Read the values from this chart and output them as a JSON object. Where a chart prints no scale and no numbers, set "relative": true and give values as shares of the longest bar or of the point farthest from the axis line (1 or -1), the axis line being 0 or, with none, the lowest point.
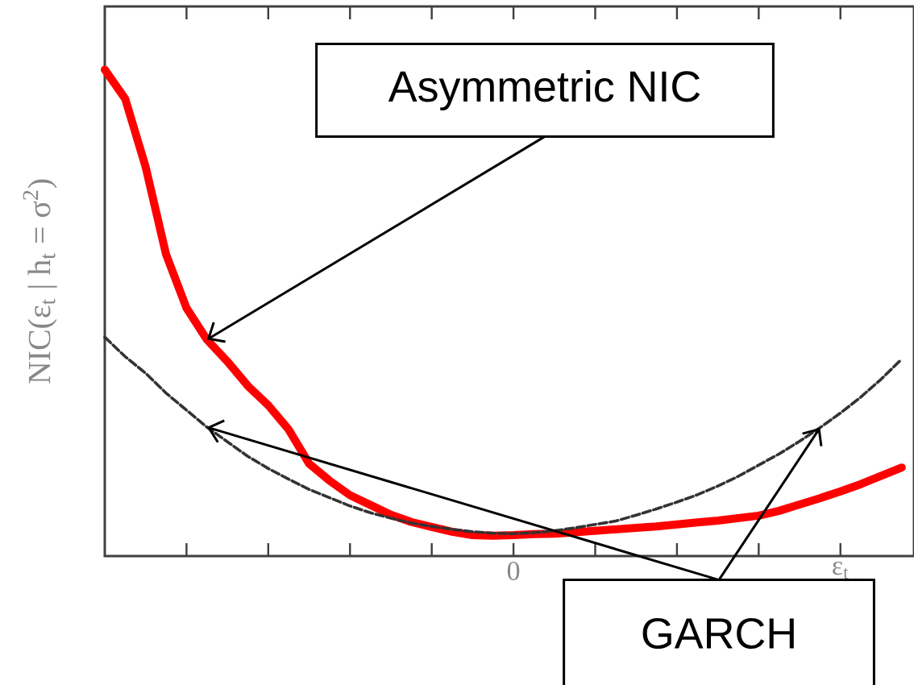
{
  "chart_data": {
    "type": "line",
    "relative": true,
    "ylabel": "NIC(ε$_{t}$ | h$_{t}$ = σ$^{2}$)",
    "categories": [
      null,
      null,
      null,
      null,
      null,
      null,
      null,
      null,
      null,
      null,
      null,
      null,
      null,
      null,
      null,
      null,
      null,
      null,
      null,
      null,
      "0",
      null,
      null,
      null,
      null,
      null,
      null,
      null,
      null,
      null,
      null,
      null,
      null,
      null,
      null,
      null,
      "ε$_{t}$",
      null,
      null,
      null
    ],
    "series": [
      {
        "color": "#ff0000",
        "line_style": "solid",
        "values": [
          1.0,
          0.94,
          0.8,
          0.62,
          0.51,
          0.445,
          0.4,
          0.35,
          0.31,
          0.26,
          0.19,
          0.155,
          0.125,
          0.105,
          0.085,
          0.07,
          0.06,
          0.05,
          0.043,
          0.042,
          0.043,
          0.045,
          0.046,
          0.049,
          0.052,
          0.055,
          0.058,
          0.061,
          0.065,
          0.069,
          0.073,
          0.078,
          0.083,
          0.093,
          0.106,
          0.119,
          0.133,
          0.148,
          0.165,
          0.182
        ]
      },
      {
        "color": "#333333",
        "line_style": "dashed",
        "values": [
          0.45,
          0.41,
          0.376,
          0.335,
          0.3,
          0.265,
          0.235,
          0.205,
          0.18,
          0.158,
          0.137,
          0.12,
          0.103,
          0.089,
          0.078,
          0.068,
          0.061,
          0.055,
          0.05,
          0.047,
          0.046,
          0.048,
          0.052,
          0.058,
          0.065,
          0.072,
          0.084,
          0.097,
          0.111,
          0.126,
          0.144,
          0.164,
          0.187,
          0.21,
          0.236,
          0.264,
          0.294,
          0.327,
          0.364,
          0.405
        ]
      }
    ],
    "annotations": [
      "Asymmetric NIC",
      "GARCH"
    ]
  }
}
